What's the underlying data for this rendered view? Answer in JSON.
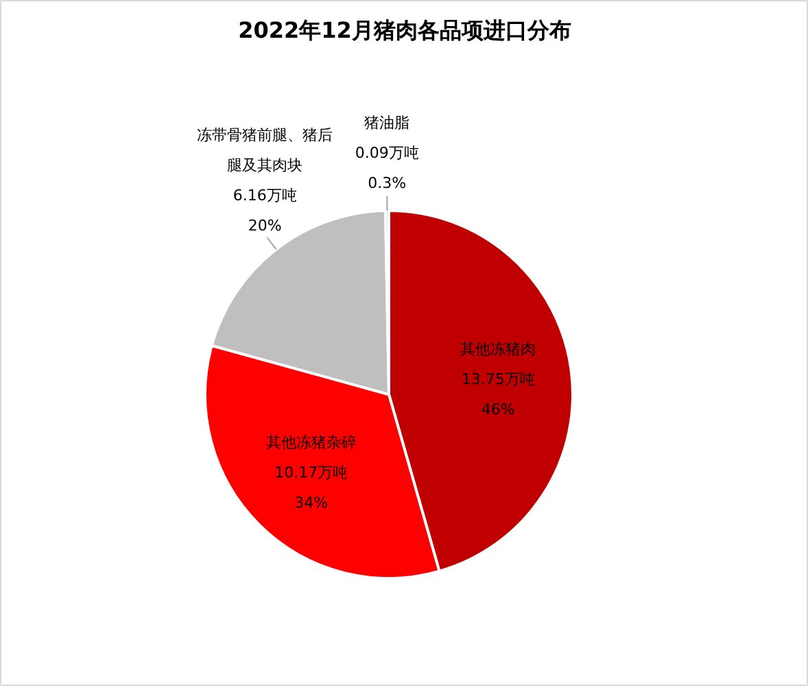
{
  "chart_data": {
    "type": "pie",
    "title": "2022年12月猪肉各品项进口分布",
    "categories": [
      "其他冻猪肉",
      "其他冻猪杂碎",
      "冻带骨猪前腿、猪后腿及其肉块",
      "猪油脂"
    ],
    "values": [
      13.75,
      10.17,
      6.16,
      0.09
    ],
    "colors": [
      "#c00000",
      "#ff0000",
      "#bfbfbf",
      "#d9d9d9"
    ],
    "value_labels": [
      "13.75万吨\n46%",
      "10.17万吨\n34%",
      "6.16万吨\n20%",
      "0.09万吨\n0.3%"
    ]
  }
}
